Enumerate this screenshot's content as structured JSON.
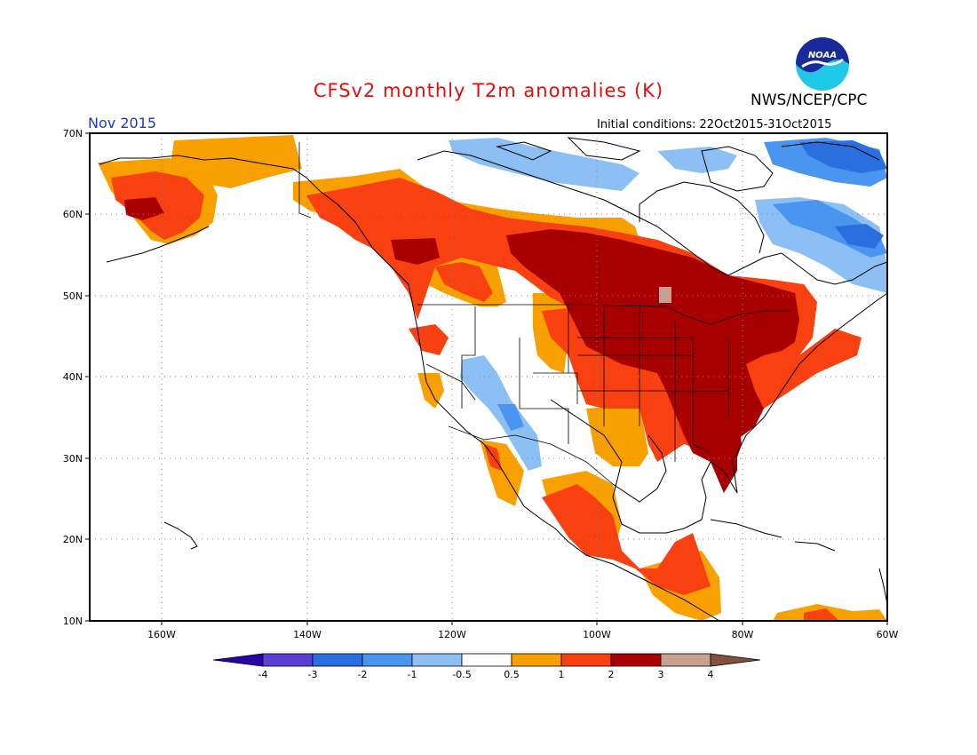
{
  "header": {
    "title": "CFSv2 monthly T2m anomalies (K)",
    "org": "NWS/NCEP/CPC",
    "logo_text": "NOAA",
    "month": "Nov 2015",
    "initial_conditions": "Initial conditions: 22Oct2015-31Oct2015"
  },
  "map": {
    "lat_labels": [
      "70N",
      "60N",
      "50N",
      "40N",
      "30N",
      "20N",
      "10N"
    ],
    "lon_labels": [
      "160W",
      "140W",
      "120W",
      "100W",
      "80W",
      "60W"
    ],
    "lat_range": [
      10,
      70
    ],
    "lon_range": [
      -170,
      -60
    ],
    "grid": "dotted",
    "ocean_color": "#ffffff"
  },
  "colorbar": {
    "labels": [
      "-4",
      "-3",
      "-2",
      "-1",
      "-0.5",
      "0.5",
      "1",
      "2",
      "3",
      "4"
    ],
    "colors": [
      "#2a00a8",
      "#5a3fd6",
      "#2a6fe0",
      "#4a95f0",
      "#8cc0f4",
      "#ffffff",
      "#f8a000",
      "#f84010",
      "#a80000",
      "#c8a090",
      "#805040"
    ]
  }
}
